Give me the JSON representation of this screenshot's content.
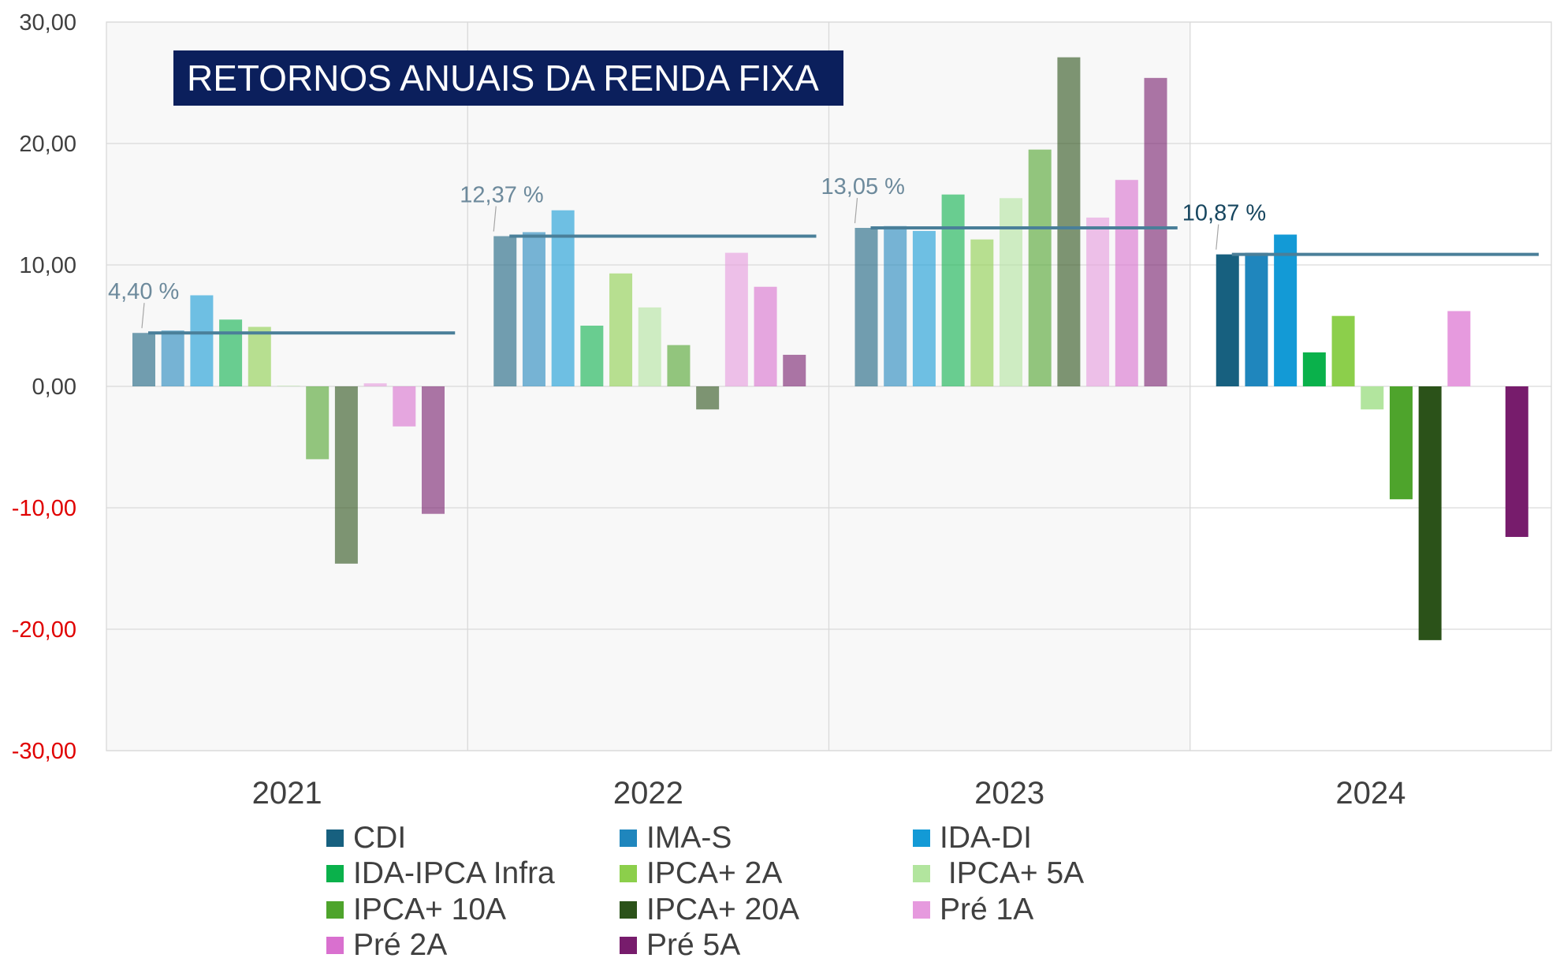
{
  "chart_data": {
    "type": "bar",
    "title": "RETORNOS ANUAIS DA RENDA FIXA",
    "xlabel": "",
    "ylabel": "",
    "ylim": [
      -30,
      30
    ],
    "yticks": [
      "-30,00",
      "-20,00",
      "-10,00",
      "0,00",
      "10,00",
      "20,00",
      "30,00"
    ],
    "negative_tick_color": "#e00000",
    "categories": [
      "2021",
      "2022",
      "2023",
      "2024"
    ],
    "series": [
      {
        "name": "CDI",
        "color": "#17607f",
        "values": [
          4.4,
          12.37,
          13.05,
          10.87
        ]
      },
      {
        "name": "IMA-S",
        "color": "#1f86bd",
        "values": [
          4.6,
          12.7,
          13.2,
          11.0
        ]
      },
      {
        "name": "IDA-DI",
        "color": "#139ad6",
        "values": [
          7.5,
          14.5,
          12.8,
          12.5
        ]
      },
      {
        "name": "IDA-IPCA Infra",
        "color": "#0ab14b",
        "values": [
          5.5,
          5.0,
          15.8,
          2.8
        ]
      },
      {
        "name": "IPCA+ 2A",
        "color": "#8ccf4b",
        "values": [
          4.9,
          9.3,
          12.1,
          5.8
        ]
      },
      {
        "name": " IPCA+ 5A",
        "color": "#b2e59e",
        "values": [
          0.05,
          6.5,
          15.5,
          -1.9
        ]
      },
      {
        "name": "IPCA+ 10A",
        "color": "#4ea42c",
        "values": [
          -6.0,
          3.4,
          19.5,
          -9.3
        ]
      },
      {
        "name": "IPCA+ 20A",
        "color": "#2b5219",
        "values": [
          -14.6,
          -1.9,
          27.1,
          -20.9
        ]
      },
      {
        "name": "Pré 1A",
        "color": "#e69ade",
        "values": [
          0.25,
          11.0,
          13.9,
          6.2
        ]
      },
      {
        "name": "Pré 2A",
        "color": "#d970cf",
        "values": [
          -3.3,
          8.2,
          17.0,
          0
        ]
      },
      {
        "name": "Pré 5A",
        "color": "#771c6c",
        "values": [
          -10.5,
          2.6,
          25.4,
          -12.4
        ]
      }
    ],
    "faded_categories": [
      "2021",
      "2022",
      "2023"
    ],
    "cdi_reference": {
      "values": [
        4.4,
        12.37,
        13.05,
        10.87
      ],
      "labels": [
        "4,40 %",
        "12,37 %",
        "13,05 %",
        "10,87 %"
      ],
      "line_color": "#4a7f99",
      "label_color_faded": "#6d8a9c",
      "label_color_current": "#17465f"
    },
    "grid": true,
    "legend_position": "bottom"
  }
}
